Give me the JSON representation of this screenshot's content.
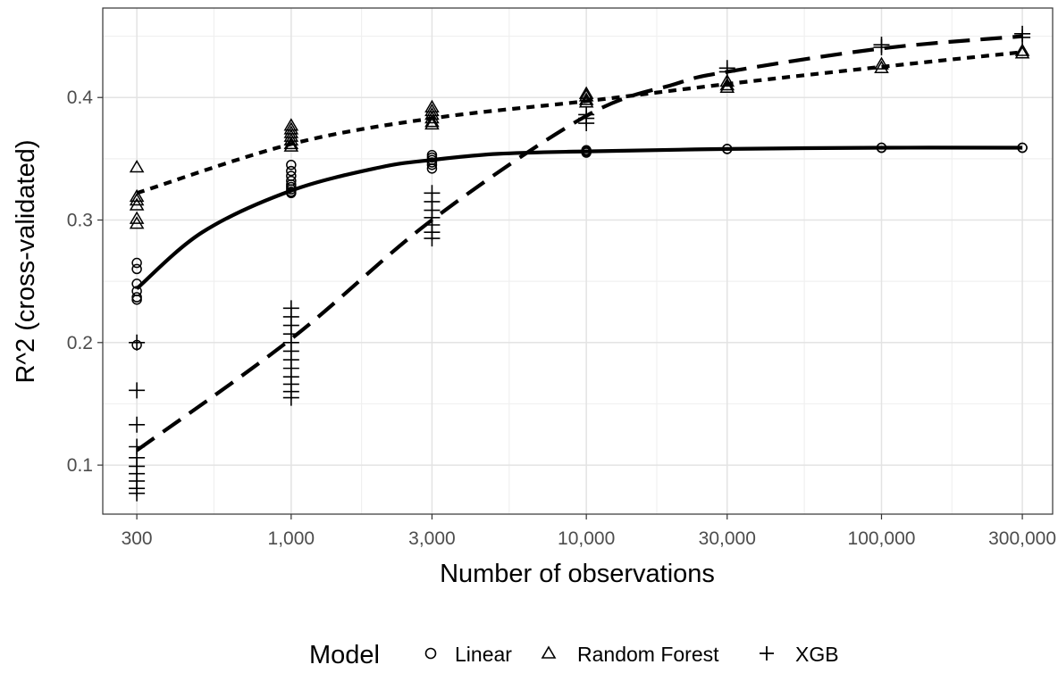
{
  "chart_data": {
    "type": "scatter",
    "title": "",
    "xlabel": "Number of observations",
    "ylabel": "R^2 (cross-validated)",
    "x_scale": "log10",
    "xlim": [
      230,
      380000
    ],
    "ylim": [
      0.06,
      0.473
    ],
    "x_ticks": [
      300,
      1000,
      3000,
      10000,
      30000,
      100000,
      300000
    ],
    "x_tick_labels": [
      "300",
      "1,000",
      "3,000",
      "10,000",
      "30,000",
      "100,000",
      "300,000"
    ],
    "y_ticks": [
      0.1,
      0.2,
      0.3,
      0.4
    ],
    "y_tick_labels": [
      "0.1",
      "0.2",
      "0.3",
      "0.4"
    ],
    "grid": true,
    "legend": {
      "title": "Model",
      "position": "bottom",
      "entries": [
        {
          "name": "Linear",
          "shape": "circle"
        },
        {
          "name": "Random Forest",
          "shape": "triangle"
        },
        {
          "name": "XGB",
          "shape": "plus"
        }
      ]
    },
    "series": [
      {
        "name": "Linear",
        "shape": "circle",
        "line_style": "solid",
        "points": [
          [
            300,
            0.265
          ],
          [
            300,
            0.26
          ],
          [
            300,
            0.248
          ],
          [
            300,
            0.242
          ],
          [
            300,
            0.237
          ],
          [
            300,
            0.235
          ],
          [
            300,
            0.198
          ],
          [
            1000,
            0.345
          ],
          [
            1000,
            0.34
          ],
          [
            1000,
            0.336
          ],
          [
            1000,
            0.332
          ],
          [
            1000,
            0.329
          ],
          [
            1000,
            0.327
          ],
          [
            1000,
            0.325
          ],
          [
            1000,
            0.323
          ],
          [
            1000,
            0.322
          ],
          [
            3000,
            0.353
          ],
          [
            3000,
            0.351
          ],
          [
            3000,
            0.349
          ],
          [
            3000,
            0.347
          ],
          [
            3000,
            0.345
          ],
          [
            3000,
            0.342
          ],
          [
            10000,
            0.357
          ],
          [
            10000,
            0.356
          ],
          [
            10000,
            0.355
          ],
          [
            30000,
            0.358
          ],
          [
            30000,
            0.358
          ],
          [
            100000,
            0.359
          ],
          [
            100000,
            0.359
          ],
          [
            300000,
            0.359
          ],
          [
            300000,
            0.359
          ]
        ],
        "fit": [
          [
            300,
            0.244
          ],
          [
            500,
            0.29
          ],
          [
            1000,
            0.324
          ],
          [
            2000,
            0.343
          ],
          [
            3000,
            0.349
          ],
          [
            5000,
            0.354
          ],
          [
            10000,
            0.356
          ],
          [
            30000,
            0.358
          ],
          [
            100000,
            0.359
          ],
          [
            300000,
            0.359
          ]
        ]
      },
      {
        "name": "Random Forest",
        "shape": "triangle",
        "line_style": "dotted",
        "points": [
          [
            300,
            0.343
          ],
          [
            300,
            0.319
          ],
          [
            300,
            0.316
          ],
          [
            300,
            0.312
          ],
          [
            300,
            0.301
          ],
          [
            300,
            0.297
          ],
          [
            1000,
            0.377
          ],
          [
            1000,
            0.374
          ],
          [
            1000,
            0.371
          ],
          [
            1000,
            0.368
          ],
          [
            1000,
            0.365
          ],
          [
            1000,
            0.362
          ],
          [
            1000,
            0.36
          ],
          [
            3000,
            0.392
          ],
          [
            3000,
            0.389
          ],
          [
            3000,
            0.386
          ],
          [
            3000,
            0.383
          ],
          [
            3000,
            0.38
          ],
          [
            3000,
            0.378
          ],
          [
            10000,
            0.403
          ],
          [
            10000,
            0.401
          ],
          [
            10000,
            0.398
          ],
          [
            10000,
            0.396
          ],
          [
            30000,
            0.413
          ],
          [
            30000,
            0.41
          ],
          [
            30000,
            0.408
          ],
          [
            100000,
            0.427
          ],
          [
            100000,
            0.424
          ],
          [
            300000,
            0.438
          ],
          [
            300000,
            0.436
          ]
        ],
        "fit": [
          [
            300,
            0.322
          ],
          [
            1000,
            0.362
          ],
          [
            3000,
            0.383
          ],
          [
            10000,
            0.397
          ],
          [
            30000,
            0.411
          ],
          [
            100000,
            0.425
          ],
          [
            300000,
            0.437
          ]
        ]
      },
      {
        "name": "XGB",
        "shape": "plus",
        "line_style": "dashed",
        "points": [
          [
            300,
            0.161
          ],
          [
            300,
            0.133
          ],
          [
            300,
            0.115
          ],
          [
            300,
            0.106
          ],
          [
            300,
            0.099
          ],
          [
            300,
            0.093
          ],
          [
            300,
            0.087
          ],
          [
            300,
            0.081
          ],
          [
            300,
            0.077
          ],
          [
            300,
            0.2
          ],
          [
            1000,
            0.228
          ],
          [
            1000,
            0.221
          ],
          [
            1000,
            0.214
          ],
          [
            1000,
            0.207
          ],
          [
            1000,
            0.2
          ],
          [
            1000,
            0.193
          ],
          [
            1000,
            0.186
          ],
          [
            1000,
            0.179
          ],
          [
            1000,
            0.172
          ],
          [
            1000,
            0.166
          ],
          [
            1000,
            0.16
          ],
          [
            1000,
            0.155
          ],
          [
            3000,
            0.322
          ],
          [
            3000,
            0.315
          ],
          [
            3000,
            0.308
          ],
          [
            3000,
            0.302
          ],
          [
            3000,
            0.296
          ],
          [
            3000,
            0.29
          ],
          [
            3000,
            0.285
          ],
          [
            10000,
            0.386
          ],
          [
            10000,
            0.383
          ],
          [
            10000,
            0.379
          ],
          [
            30000,
            0.424
          ],
          [
            30000,
            0.421
          ],
          [
            100000,
            0.443
          ],
          [
            100000,
            0.441
          ],
          [
            300000,
            0.452
          ],
          [
            300000,
            0.449
          ]
        ],
        "fit": [
          [
            300,
            0.112
          ],
          [
            1000,
            0.203
          ],
          [
            3000,
            0.3
          ],
          [
            10000,
            0.385
          ],
          [
            20000,
            0.411
          ],
          [
            30000,
            0.421
          ],
          [
            100000,
            0.44
          ],
          [
            300000,
            0.45
          ]
        ]
      }
    ]
  }
}
